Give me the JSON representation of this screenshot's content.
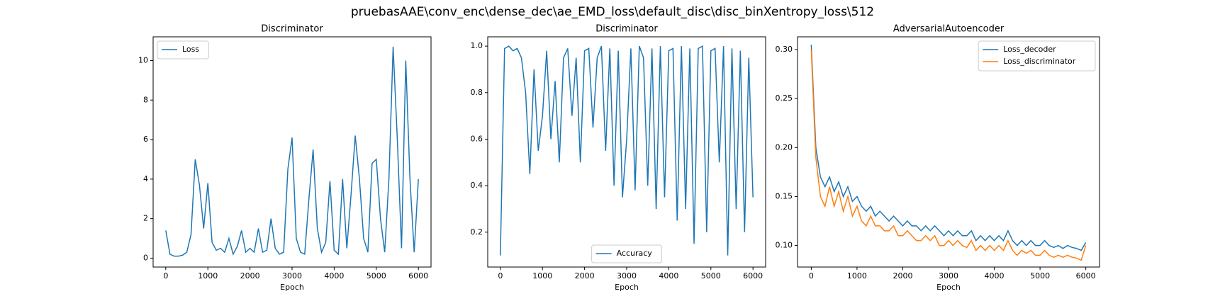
{
  "title": "pruebasAAE\\conv_enc\\dense_dec\\ae_EMD_loss\\default_disc\\disc_binXentropy_loss\\512",
  "chart_data": [
    {
      "type": "line",
      "title": "Discriminator",
      "xlabel": "Epoch",
      "legend": "upper left",
      "x": [
        0,
        100,
        200,
        300,
        400,
        500,
        600,
        700,
        800,
        900,
        1000,
        1100,
        1200,
        1300,
        1400,
        1500,
        1600,
        1700,
        1800,
        1900,
        2000,
        2100,
        2200,
        2300,
        2400,
        2500,
        2600,
        2700,
        2800,
        2900,
        3000,
        3100,
        3200,
        3300,
        3400,
        3500,
        3600,
        3700,
        3800,
        3900,
        4000,
        4100,
        4200,
        4300,
        4400,
        4500,
        4600,
        4700,
        4800,
        4900,
        5000,
        5100,
        5200,
        5300,
        5400,
        5500,
        5600,
        5700,
        5800,
        5900,
        6000
      ],
      "xlim": [
        -300,
        6300
      ],
      "xticks": [
        0,
        1000,
        2000,
        3000,
        4000,
        5000,
        6000
      ],
      "ylim": [
        -0.45,
        11.2
      ],
      "yticks": [
        0,
        2,
        4,
        6,
        8,
        10
      ],
      "series": [
        {
          "name": "Loss",
          "color": "#1f77b4",
          "values": [
            1.4,
            0.2,
            0.1,
            0.1,
            0.15,
            0.3,
            1.2,
            5.0,
            3.7,
            1.5,
            3.8,
            0.8,
            0.4,
            0.5,
            0.3,
            1.0,
            0.2,
            0.6,
            1.4,
            0.3,
            0.5,
            0.3,
            1.5,
            0.3,
            0.4,
            2.0,
            0.5,
            0.2,
            0.3,
            4.5,
            6.1,
            1.0,
            0.3,
            0.2,
            3.0,
            5.5,
            1.5,
            0.3,
            0.8,
            3.9,
            0.4,
            0.2,
            4.0,
            0.5,
            3.2,
            6.2,
            4.0,
            1.0,
            0.3,
            4.8,
            5.0,
            2.0,
            0.3,
            4.0,
            10.7,
            6.0,
            0.5,
            10.0,
            4.0,
            0.3,
            4.0
          ]
        }
      ]
    },
    {
      "type": "line",
      "title": "Discriminator",
      "xlabel": "Epoch",
      "legend": "lower center",
      "x": [
        0,
        100,
        200,
        300,
        400,
        500,
        600,
        700,
        800,
        900,
        1000,
        1100,
        1200,
        1300,
        1400,
        1500,
        1600,
        1700,
        1800,
        1900,
        2000,
        2100,
        2200,
        2300,
        2400,
        2500,
        2600,
        2700,
        2800,
        2900,
        3000,
        3100,
        3200,
        3300,
        3400,
        3500,
        3600,
        3700,
        3800,
        3900,
        4000,
        4100,
        4200,
        4300,
        4400,
        4500,
        4600,
        4700,
        4800,
        4900,
        5000,
        5100,
        5200,
        5300,
        5400,
        5500,
        5600,
        5700,
        5800,
        5900,
        6000
      ],
      "xlim": [
        -300,
        6300
      ],
      "xticks": [
        0,
        1000,
        2000,
        3000,
        4000,
        5000,
        6000
      ],
      "ylim": [
        0.05,
        1.04
      ],
      "yticks": [
        0.2,
        0.4,
        0.6,
        0.8,
        {
          "value": 1,
          "label": "1.0"
        }
      ],
      "series": [
        {
          "name": "Accuracy",
          "color": "#1f77b4",
          "values": [
            0.1,
            0.99,
            1.0,
            0.98,
            0.99,
            0.95,
            0.8,
            0.45,
            0.9,
            0.55,
            0.7,
            0.98,
            0.6,
            0.85,
            0.5,
            0.95,
            0.99,
            0.7,
            0.95,
            0.5,
            0.98,
            0.99,
            0.65,
            0.95,
            1.0,
            0.55,
            0.99,
            0.4,
            0.98,
            0.35,
            0.6,
            0.99,
            0.38,
            1.0,
            0.95,
            0.4,
            0.99,
            0.3,
            1.0,
            0.35,
            0.98,
            0.99,
            0.25,
            1.0,
            0.3,
            0.99,
            0.15,
            0.99,
            1.0,
            0.2,
            0.98,
            0.99,
            0.5,
            1.0,
            0.1,
            0.99,
            0.3,
            0.98,
            0.2,
            0.95,
            0.35
          ]
        }
      ]
    },
    {
      "type": "line",
      "title": "AdversarialAutoencoder",
      "xlabel": "Epoch",
      "legend": "upper right",
      "x": [
        0,
        100,
        200,
        300,
        400,
        500,
        600,
        700,
        800,
        900,
        1000,
        1100,
        1200,
        1300,
        1400,
        1500,
        1600,
        1700,
        1800,
        1900,
        2000,
        2100,
        2200,
        2300,
        2400,
        2500,
        2600,
        2700,
        2800,
        2900,
        3000,
        3100,
        3200,
        3300,
        3400,
        3500,
        3600,
        3700,
        3800,
        3900,
        4000,
        4100,
        4200,
        4300,
        4400,
        4500,
        4600,
        4700,
        4800,
        4900,
        5000,
        5100,
        5200,
        5300,
        5400,
        5500,
        5600,
        5700,
        5800,
        5900,
        6000
      ],
      "xlim": [
        -300,
        6300
      ],
      "xticks": [
        0,
        1000,
        2000,
        3000,
        4000,
        5000,
        6000
      ],
      "ylim": [
        0.078,
        0.313
      ],
      "yticks": [
        {
          "value": 0.1,
          "label": "0.10"
        },
        0.15,
        {
          "value": 0.2,
          "label": "0.20"
        },
        0.25,
        {
          "value": 0.3,
          "label": "0.30"
        }
      ],
      "series": [
        {
          "name": "Loss_decoder",
          "color": "#1f77b4",
          "values": [
            0.305,
            0.2,
            0.17,
            0.16,
            0.17,
            0.155,
            0.165,
            0.15,
            0.16,
            0.145,
            0.15,
            0.14,
            0.135,
            0.14,
            0.13,
            0.135,
            0.13,
            0.125,
            0.13,
            0.125,
            0.12,
            0.125,
            0.12,
            0.12,
            0.115,
            0.12,
            0.115,
            0.12,
            0.115,
            0.11,
            0.115,
            0.11,
            0.115,
            0.11,
            0.11,
            0.115,
            0.105,
            0.11,
            0.105,
            0.11,
            0.105,
            0.11,
            0.105,
            0.115,
            0.105,
            0.1,
            0.105,
            0.1,
            0.105,
            0.1,
            0.1,
            0.105,
            0.1,
            0.098,
            0.1,
            0.097,
            0.1,
            0.098,
            0.097,
            0.095,
            0.103
          ]
        },
        {
          "name": "Loss_discriminator",
          "color": "#ff7f0e",
          "values": [
            0.3,
            0.19,
            0.15,
            0.14,
            0.16,
            0.14,
            0.155,
            0.135,
            0.15,
            0.13,
            0.14,
            0.125,
            0.12,
            0.13,
            0.12,
            0.12,
            0.115,
            0.115,
            0.12,
            0.11,
            0.11,
            0.115,
            0.11,
            0.105,
            0.105,
            0.11,
            0.105,
            0.11,
            0.1,
            0.1,
            0.105,
            0.1,
            0.105,
            0.1,
            0.098,
            0.105,
            0.095,
            0.1,
            0.095,
            0.1,
            0.095,
            0.1,
            0.095,
            0.105,
            0.095,
            0.09,
            0.095,
            0.092,
            0.095,
            0.09,
            0.09,
            0.095,
            0.09,
            0.088,
            0.09,
            0.088,
            0.09,
            0.088,
            0.087,
            0.085,
            0.1
          ]
        }
      ]
    }
  ]
}
